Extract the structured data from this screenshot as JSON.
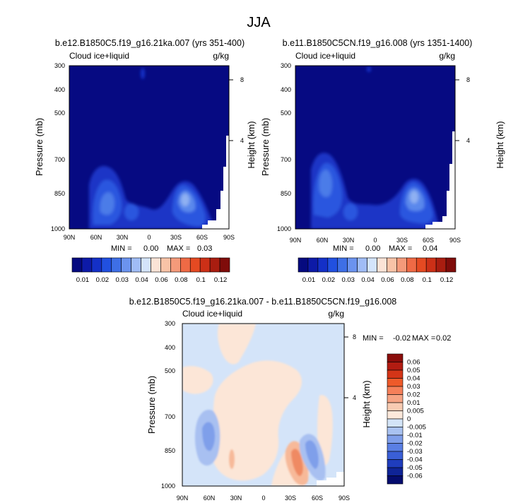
{
  "figure": {
    "title": "JJA"
  },
  "chart_data": [
    {
      "type": "heatmap",
      "title": "b.e12.B1850C5.f19_g16.21ka.007 (yrs 351-400)",
      "left_label": "Cloud ice+liquid",
      "units": "g/kg",
      "ylabel": "Pressure (mb)",
      "ylabel_right": "Height (km)",
      "x_ticks": [
        "90N",
        "60N",
        "30N",
        "0",
        "30S",
        "60S",
        "90S"
      ],
      "y_ticks": [
        "300",
        "400",
        "500",
        "700",
        "850",
        "1000"
      ],
      "right_ticks": [
        "8",
        "4"
      ],
      "stats": {
        "min_label": "MIN =",
        "min": "0.00",
        "max_label": "MAX =",
        "max": "0.03"
      }
    },
    {
      "type": "heatmap",
      "title": "b.e11.B1850C5CN.f19_g16.008 (yrs 1351-1400)",
      "left_label": "Cloud ice+liquid",
      "units": "g/kg",
      "ylabel": "Pressure (mb)",
      "ylabel_right": "Height (km)",
      "x_ticks": [
        "90N",
        "60N",
        "30N",
        "0",
        "30S",
        "60S",
        "90S"
      ],
      "y_ticks": [
        "300",
        "400",
        "500",
        "700",
        "850",
        "1000"
      ],
      "right_ticks": [
        "8",
        "4"
      ],
      "stats": {
        "min_label": "MIN =",
        "min": "0.00",
        "max_label": "MAX =",
        "max": "0.04"
      }
    },
    {
      "type": "heatmap",
      "title": "b.e12.B1850C5.f19_g16.21ka.007 - b.e11.B1850C5CN.f19_g16.008",
      "left_label": "Cloud ice+liquid",
      "units": "g/kg",
      "ylabel": "Pressure (mb)",
      "ylabel_right": "Height (km)",
      "x_ticks": [
        "90N",
        "60N",
        "30N",
        "0",
        "30S",
        "60S",
        "90S"
      ],
      "y_ticks": [
        "300",
        "400",
        "500",
        "700",
        "850",
        "1000"
      ],
      "right_ticks": [
        "8",
        "4"
      ],
      "stats": {
        "min_label": "MIN =",
        "min": "-0.02",
        "max_label": "MAX =",
        "max": "0.02"
      }
    }
  ],
  "colorbar_top": {
    "labels": [
      "0.01",
      "0.02",
      "0.03",
      "0.04",
      "0.06",
      "0.08",
      "0.1",
      "0.12"
    ],
    "colors": [
      "#050a7f",
      "#0d1aa7",
      "#1430c7",
      "#2150e0",
      "#3e6fe6",
      "#6b93ef",
      "#a0bcf6",
      "#d4e4fb",
      "#fbe3d6",
      "#f8c3a7",
      "#f49a7a",
      "#ef6a45",
      "#e54a22",
      "#cc3017",
      "#a91d10",
      "#7f0c0a"
    ]
  },
  "colorbar_diff": {
    "labels": [
      "0.06",
      "0.05",
      "0.04",
      "0.03",
      "0.02",
      "0.01",
      "0.005",
      "0",
      "-0.005",
      "-0.01",
      "-0.02",
      "-0.03",
      "-0.04",
      "-0.05",
      "-0.06"
    ],
    "colors": [
      "#8a0d0b",
      "#b21c12",
      "#d43517",
      "#ee5a2a",
      "#f5805a",
      "#f6a484",
      "#f8cbb2",
      "#fce8da",
      "#d3e4f8",
      "#a9c2f1",
      "#7f9eea",
      "#5a7fe4",
      "#3a5fd6",
      "#1f3dbd",
      "#0f2497",
      "#050c6e"
    ]
  }
}
